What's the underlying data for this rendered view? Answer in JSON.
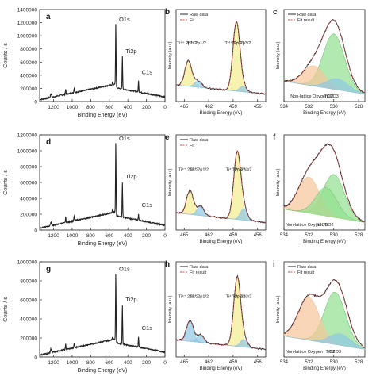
{
  "colors": {
    "raw": "#222222",
    "fit": "#c0504d",
    "ti4_fill": "#f3ec8e",
    "ti3_fill": "#8fc7e6",
    "tio2_fill": "#92e08e",
    "ti2o3_fill": "#8fc7e6",
    "nonlattice_fill": "#f6c49a"
  },
  "chart_data": [
    {
      "panel": "a",
      "type": "line",
      "series_name": "survey",
      "xlabel": "Binding Energy (eV)",
      "ylabel": "Counts / s",
      "xlim": [
        1350,
        0
      ],
      "ylim": [
        0,
        1400000
      ],
      "yticks": [
        "0",
        "200000",
        "400000",
        "600000",
        "800000",
        "1000000",
        "1200000",
        "1400000"
      ],
      "xticks": [
        "1200",
        "1000",
        "800",
        "600",
        "400",
        "200",
        "0"
      ],
      "peaks": [
        {
          "label": "O1s",
          "x": 530,
          "y": 1180000
        },
        {
          "label": "Ti2p",
          "x": 459,
          "y": 700000
        },
        {
          "label": "C1s",
          "x": 285,
          "y": 380000
        }
      ]
    },
    {
      "panel": "b",
      "type": "line",
      "legend": [
        "Raw data",
        "Fit"
      ],
      "xlabel": "Binding Energy (eV)",
      "ylabel": "Intensity (a.u.)",
      "xlim": [
        466,
        455
      ],
      "xticks": [
        "465",
        "462",
        "459",
        "456"
      ],
      "components": [
        {
          "label": "Ti⁴⁺ 2p1/2",
          "center": 464.5,
          "height": 0.28,
          "fill": "ti4"
        },
        {
          "label": "Ti⁴⁺ 2p3/2",
          "center": 458.6,
          "height": 0.75,
          "fill": "ti4"
        },
        {
          "label": "Ti³⁺ 2p1/2",
          "center": 463.3,
          "height": 0.07,
          "fill": "ti3"
        },
        {
          "label": "Ti³⁺ 2p3/2",
          "center": 457.8,
          "height": 0.06,
          "fill": "ti3"
        }
      ]
    },
    {
      "panel": "c",
      "type": "line",
      "legend": [
        "Raw data",
        "Fit result"
      ],
      "xlabel": "Binding Energy (eV)",
      "ylabel": "Intensity (a.u.)",
      "xlim": [
        534,
        527.5
      ],
      "xticks": [
        "534",
        "532",
        "530",
        "528"
      ],
      "components": [
        {
          "label": "TiO2",
          "center": 530.0,
          "height": 0.6,
          "fill": "tio2"
        },
        {
          "label": "Non-lattice Oxygen",
          "center": 531.6,
          "height": 0.22,
          "fill": "nonlattice"
        },
        {
          "label": "Ti2O3",
          "center": 529.7,
          "height": 0.12,
          "fill": "ti2o3"
        }
      ]
    },
    {
      "panel": "d",
      "type": "line",
      "xlabel": "Binding Energy (eV)",
      "ylabel": "Counts / s",
      "xlim": [
        1350,
        0
      ],
      "ylim": [
        0,
        1200000
      ],
      "yticks": [
        "0",
        "200000",
        "400000",
        "600000",
        "800000",
        "1000000",
        "1200000"
      ],
      "xticks": [
        "1200",
        "1000",
        "800",
        "600",
        "400",
        "200",
        "0"
      ],
      "peaks": [
        {
          "label": "O1s",
          "x": 530,
          "y": 1100000
        },
        {
          "label": "Ti2p",
          "x": 459,
          "y": 620000
        },
        {
          "label": "C1s",
          "x": 285,
          "y": 260000
        }
      ]
    },
    {
      "panel": "e",
      "type": "line",
      "legend": [
        "Raw data",
        "Fit"
      ],
      "xlabel": "Binding Energy (eV)",
      "ylabel": "Intensity (a.u.)",
      "xlim": [
        466,
        455
      ],
      "xticks": [
        "465",
        "462",
        "459",
        "456"
      ],
      "components": [
        {
          "label": "Ti⁴⁺ 2p1/2",
          "center": 464.3,
          "height": 0.25,
          "fill": "ti4"
        },
        {
          "label": "Ti⁴⁺ 2p3/2",
          "center": 458.5,
          "height": 0.7,
          "fill": "ti4"
        },
        {
          "label": "Ti³⁺ 2p1/2",
          "center": 463.0,
          "height": 0.1,
          "fill": "ti3"
        },
        {
          "label": "Ti³⁺ 2p3/2",
          "center": 457.7,
          "height": 0.12,
          "fill": "ti3"
        }
      ]
    },
    {
      "panel": "f",
      "type": "line",
      "xlabel": "Binding Energy (eV)",
      "ylabel": "Intensity (a.u.)",
      "xlim": [
        534,
        527.5
      ],
      "xticks": [
        "534",
        "532",
        "530",
        "528"
      ],
      "components": [
        {
          "label": "TiO2",
          "center": 530.0,
          "height": 0.45,
          "fill": "tio2"
        },
        {
          "label": "Non-lattice Oxygen",
          "center": 532.0,
          "height": 0.38,
          "fill": "nonlattice"
        },
        {
          "label": "Ti2O3",
          "center": 530.6,
          "height": 0.3,
          "fill": "tio2"
        }
      ]
    },
    {
      "panel": "g",
      "type": "line",
      "xlabel": "Binding Energy (eV)",
      "ylabel": "Counts / s",
      "xlim": [
        1350,
        0
      ],
      "ylim": [
        0,
        1000000
      ],
      "yticks": [
        "0",
        "200000",
        "400000",
        "600000",
        "800000",
        "1000000"
      ],
      "xticks": [
        "1200",
        "1000",
        "800",
        "600",
        "400",
        "200",
        "0"
      ],
      "peaks": [
        {
          "label": "O1s",
          "x": 530,
          "y": 880000
        },
        {
          "label": "Ti2p",
          "x": 459,
          "y": 560000
        },
        {
          "label": "C1s",
          "x": 285,
          "y": 260000
        }
      ]
    },
    {
      "panel": "h",
      "type": "line",
      "legend": [
        "Raw data",
        "Fit result"
      ],
      "xlabel": "Binding Energy (eV)",
      "ylabel": "Intensity (a.u.)",
      "xlim": [
        466,
        455
      ],
      "xticks": [
        "465",
        "462",
        "459",
        "456"
      ],
      "components": [
        {
          "label": "Ti⁴⁺ 2p1/2",
          "center": 464.3,
          "height": 0.22,
          "fill": "ti3"
        },
        {
          "label": "Ti⁴⁺ 2p3/2",
          "center": 458.5,
          "height": 0.72,
          "fill": "ti4"
        },
        {
          "label": "Ti³⁺ 2p1/2",
          "center": 463.0,
          "height": 0.08,
          "fill": "ti3"
        },
        {
          "label": "Ti³⁺ 2p3/2",
          "center": 457.7,
          "height": 0.08,
          "fill": "ti3"
        }
      ]
    },
    {
      "panel": "i",
      "type": "line",
      "legend": [
        "Raw data",
        "Fit result"
      ],
      "xlabel": "Binding Energy (eV)",
      "ylabel": "Intensity (a.u.)",
      "xlim": [
        534,
        527.5
      ],
      "xticks": [
        "534",
        "532",
        "530",
        "528"
      ],
      "components": [
        {
          "label": "TiO2",
          "center": 529.9,
          "height": 0.55,
          "fill": "tio2"
        },
        {
          "label": "Non-lattice Oxygen",
          "center": 532.0,
          "height": 0.45,
          "fill": "nonlattice"
        },
        {
          "label": "Ti2O3",
          "center": 529.5,
          "height": 0.12,
          "fill": "ti2o3"
        }
      ]
    }
  ]
}
